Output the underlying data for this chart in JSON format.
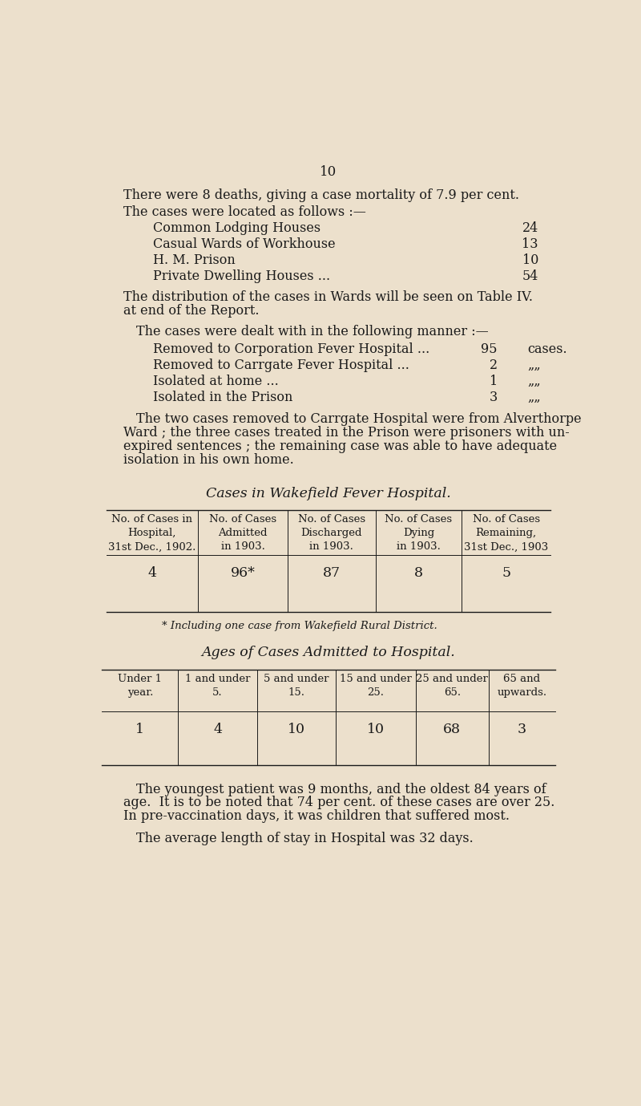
{
  "bg_color": "#ece0cc",
  "text_color": "#1a1a1a",
  "page_number": "10",
  "para1": "There were 8 deaths, giving a case mortality of 7.9 per cent.",
  "para2_intro": "The cases were located as follows :—",
  "locations": [
    [
      "Common Lodging Houses",
      "24"
    ],
    [
      "Casual Wards of Workhouse",
      "13"
    ],
    [
      "H. M. Prison",
      "10"
    ],
    [
      "Private Dwelling Houses ...",
      "54"
    ]
  ],
  "para3a": "The distribution of the cases in Wards will be seen on Table IV.",
  "para3b": "at end of the Report.",
  "para4_intro": "The cases were dealt with in the following manner :—",
  "manner": [
    [
      "Removed to Corporation Fever Hospital ...",
      "95",
      "cases."
    ],
    [
      "Removed to Carrgate Fever Hospital ...",
      "2",
      "„„"
    ],
    [
      "Isolated at home ...",
      "1",
      "„„"
    ],
    [
      "Isolated in the Prison",
      "3",
      "„„"
    ]
  ],
  "para5_lines": [
    "The two cases removed to Carrgate Hospital were from Alverthorpe",
    "Ward ; the three cases treated in the Prison were prisoners with un-",
    "expired sentences ; the remaining case was able to have adequate",
    "isolation in his own home."
  ],
  "table1_title": "Cases in Wakefield Fever Hospital.",
  "table1_headers": [
    "No. of Cases in\nHospital,\n31st Dec., 1902.",
    "No. of Cases\nAdmitted\nin 1903.",
    "No. of Cases\nDischarged\nin 1903.",
    "No. of Cases\nDying\nin 1903.",
    "No. of Cases\nRemaining,\n31st Dec., 1903"
  ],
  "table1_data": [
    "4",
    "96*",
    "87",
    "8",
    "5"
  ],
  "table1_footnote": "* Including one case from Wakefield Rural District.",
  "table2_title": "Ages of Cases Admitted to Hospital.",
  "table2_headers": [
    "Under 1\nyear.",
    "1 and under\n5.",
    "5 and under\n15.",
    "15 and under\n25.",
    "25 and under\n65.",
    "65 and\nupwards."
  ],
  "table2_data": [
    "1",
    "4",
    "10",
    "10",
    "68",
    "3"
  ],
  "para6_lines": [
    "The youngest patient was 9 months, and the oldest 84 years of",
    "age.  It is to be noted that 74 per cent. of these cases are over 25.",
    "In pre-vaccination days, it was children that suffered most."
  ],
  "para7": "The average length of stay in Hospital was 32 days.",
  "font_size_body": 11.5,
  "font_size_table_header": 9.5,
  "font_size_table_data": 12.5,
  "font_size_page_num": 12,
  "font_size_title": 12.5
}
